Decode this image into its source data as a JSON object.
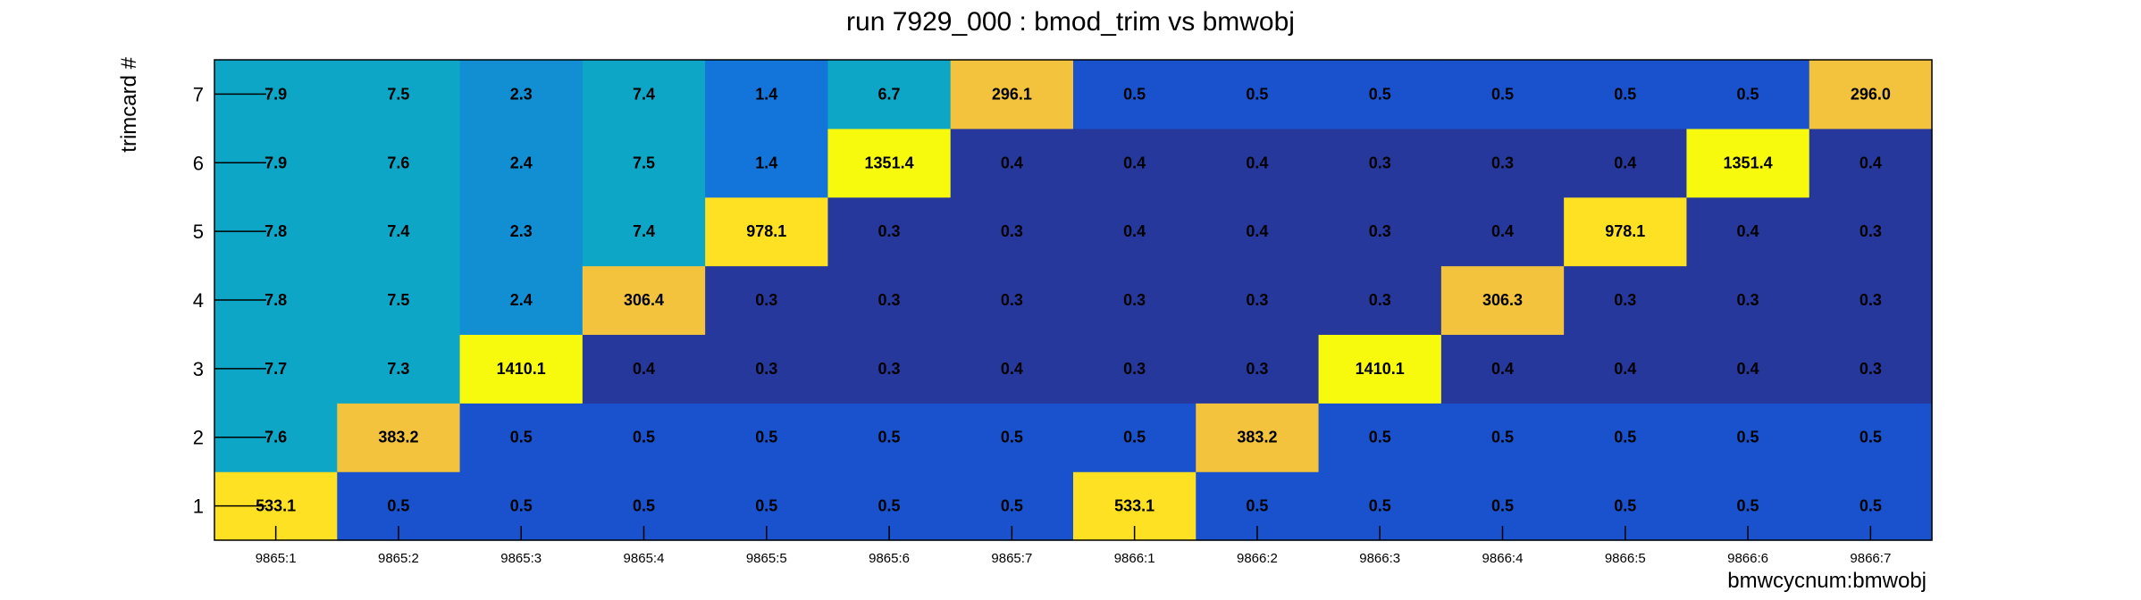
{
  "chart_data": {
    "type": "heatmap",
    "title": "run 7929_000 : bmod_trim vs bmwobj",
    "xlabel": "bmwcycnum:bmwobj",
    "ylabel": "trimcard #",
    "x_categories": [
      "9865:1",
      "9865:2",
      "9865:3",
      "9865:4",
      "9865:5",
      "9865:6",
      "9865:7",
      "9866:1",
      "9866:2",
      "9866:3",
      "9866:4",
      "9866:5",
      "9866:6",
      "9866:7"
    ],
    "y_categories": [
      "1",
      "2",
      "3",
      "4",
      "5",
      "6",
      "7"
    ],
    "values": [
      [
        533.1,
        7.6,
        7.7,
        7.8,
        7.8,
        7.9,
        7.9
      ],
      [
        0.5,
        383.2,
        7.3,
        7.5,
        7.4,
        7.6,
        7.5
      ],
      [
        0.5,
        0.5,
        1410.1,
        2.4,
        2.3,
        2.4,
        2.3
      ],
      [
        0.5,
        0.5,
        0.4,
        306.4,
        7.4,
        7.5,
        7.4
      ],
      [
        0.5,
        0.5,
        0.3,
        0.3,
        978.1,
        1.4,
        1.4
      ],
      [
        0.5,
        0.5,
        0.3,
        0.3,
        0.3,
        1351.4,
        6.7
      ],
      [
        0.5,
        0.5,
        0.4,
        0.3,
        0.3,
        0.4,
        296.1
      ],
      [
        533.1,
        0.5,
        0.3,
        0.3,
        0.4,
        0.4,
        0.5
      ],
      [
        0.5,
        383.2,
        0.3,
        0.3,
        0.4,
        0.4,
        0.5
      ],
      [
        0.5,
        0.5,
        1410.1,
        0.3,
        0.3,
        0.3,
        0.5
      ],
      [
        0.5,
        0.5,
        0.4,
        306.3,
        0.4,
        0.3,
        0.5
      ],
      [
        0.5,
        0.5,
        0.4,
        0.3,
        978.1,
        0.4,
        0.5
      ],
      [
        0.5,
        0.5,
        0.4,
        0.3,
        0.4,
        1351.4,
        0.5
      ],
      [
        0.5,
        0.5,
        0.3,
        0.3,
        0.3,
        0.4,
        296.0
      ]
    ],
    "value_labels": [
      [
        "533.1",
        "7.6",
        "7.7",
        "7.8",
        "7.8",
        "7.9",
        "7.9"
      ],
      [
        "0.5",
        "383.2",
        "7.3",
        "7.5",
        "7.4",
        "7.6",
        "7.5"
      ],
      [
        "0.5",
        "0.5",
        "1410.1",
        "2.4",
        "2.3",
        "2.4",
        "2.3"
      ],
      [
        "0.5",
        "0.5",
        "0.4",
        "306.4",
        "7.4",
        "7.5",
        "7.4"
      ],
      [
        "0.5",
        "0.5",
        "0.3",
        "0.3",
        "978.1",
        "1.4",
        "1.4"
      ],
      [
        "0.5",
        "0.5",
        "0.3",
        "0.3",
        "0.3",
        "1351.4",
        "6.7"
      ],
      [
        "0.5",
        "0.5",
        "0.4",
        "0.3",
        "0.3",
        "0.4",
        "296.1"
      ],
      [
        "533.1",
        "0.5",
        "0.3",
        "0.3",
        "0.4",
        "0.4",
        "0.5"
      ],
      [
        "0.5",
        "383.2",
        "0.3",
        "0.3",
        "0.4",
        "0.4",
        "0.5"
      ],
      [
        "0.5",
        "0.5",
        "1410.1",
        "0.3",
        "0.3",
        "0.3",
        "0.5"
      ],
      [
        "0.5",
        "0.5",
        "0.4",
        "306.3",
        "0.4",
        "0.3",
        "0.5"
      ],
      [
        "0.5",
        "0.5",
        "0.4",
        "0.3",
        "978.1",
        "0.4",
        "0.5"
      ],
      [
        "0.5",
        "0.5",
        "0.4",
        "0.3",
        "0.4",
        "1351.4",
        "0.5"
      ],
      [
        "0.5",
        "0.5",
        "0.3",
        "0.3",
        "0.3",
        "0.4",
        "296.0"
      ]
    ],
    "colormap": "parula",
    "colors": {
      "lowest": "#27389c",
      "low": "#1952cc",
      "mid_low": "#1374da",
      "mid": "#128ed3",
      "mid_high": "#0ea6c6",
      "high": "#f3c33d",
      "very_high": "#fde122",
      "max": "#f8fa0e"
    },
    "grid": false,
    "legend": "none"
  }
}
